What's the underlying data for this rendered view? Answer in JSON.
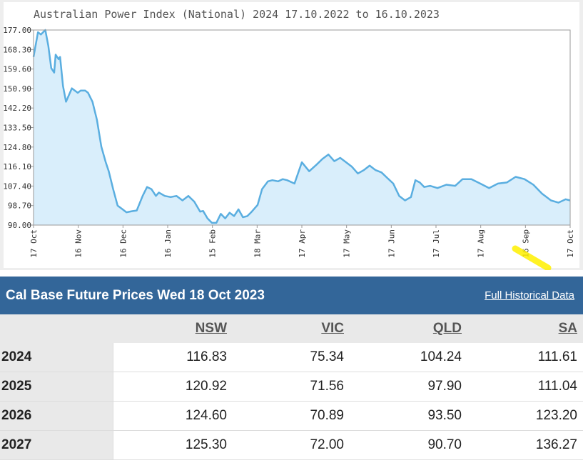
{
  "chart_data": {
    "type": "area",
    "title": "Australian Power Index (National) 2024 17.10.2022 to 16.10.2023",
    "ylim": [
      90.0,
      177.0
    ],
    "y_ticks": [
      "177.00",
      "168.30",
      "159.60",
      "150.90",
      "142.20",
      "133.50",
      "124.80",
      "116.10",
      "107.40",
      "98.70",
      "90.00"
    ],
    "x_ticks": [
      "17 Oct",
      "16 Nov",
      "16 Dec",
      "16 Jan",
      "15 Feb",
      "18 Mar",
      "17 Apr",
      "17 May",
      "17 Jun",
      "17 Jul",
      "17 Aug",
      "16 Sep",
      "17 Oct"
    ],
    "grid": false,
    "series": [
      {
        "x": [
          "2022-10-17",
          "2022-10-20",
          "2022-10-22",
          "2022-10-25",
          "2022-10-27",
          "2022-10-29",
          "2022-10-31",
          "2022-11-01",
          "2022-11-03",
          "2022-11-04",
          "2022-11-06",
          "2022-11-08",
          "2022-11-10",
          "2022-11-12",
          "2022-11-14",
          "2022-11-16",
          "2022-11-18",
          "2022-11-21",
          "2022-11-23",
          "2022-11-26",
          "2022-11-29",
          "2022-12-02",
          "2022-12-05",
          "2022-12-07",
          "2022-12-10",
          "2022-12-13",
          "2022-12-16",
          "2022-12-19",
          "2022-12-23",
          "2022-12-26",
          "2022-12-30",
          "2023-01-02",
          "2023-01-05",
          "2023-01-08",
          "2023-01-10",
          "2023-01-14",
          "2023-01-18",
          "2023-01-22",
          "2023-01-26",
          "2023-01-30",
          "2023-02-03",
          "2023-02-07",
          "2023-02-09",
          "2023-02-12",
          "2023-02-15",
          "2023-02-18",
          "2023-02-21",
          "2023-02-24",
          "2023-02-27",
          "2023-03-02",
          "2023-03-05",
          "2023-03-08",
          "2023-03-11",
          "2023-03-14",
          "2023-03-18",
          "2023-03-21",
          "2023-03-25",
          "2023-03-28",
          "2023-04-01",
          "2023-04-04",
          "2023-04-07",
          "2023-04-12",
          "2023-04-17",
          "2023-04-22",
          "2023-04-27",
          "2023-05-01",
          "2023-05-05",
          "2023-05-09",
          "2023-05-13",
          "2023-05-17",
          "2023-05-21",
          "2023-05-25",
          "2023-05-29",
          "2023-06-02",
          "2023-06-06",
          "2023-06-10",
          "2023-06-14",
          "2023-06-18",
          "2023-06-22",
          "2023-06-26",
          "2023-06-30",
          "2023-07-03",
          "2023-07-06",
          "2023-07-09",
          "2023-07-13",
          "2023-07-18",
          "2023-07-24",
          "2023-07-30",
          "2023-08-04",
          "2023-08-10",
          "2023-08-16",
          "2023-08-22",
          "2023-08-28",
          "2023-09-03",
          "2023-09-09",
          "2023-09-15",
          "2023-09-21",
          "2023-09-27",
          "2023-10-03",
          "2023-10-08",
          "2023-10-13",
          "2023-10-16"
        ],
        "y": [
          165.0,
          176.0,
          175.0,
          177.0,
          170.0,
          160.0,
          158.0,
          166.0,
          164.0,
          165.0,
          152.0,
          145.0,
          148.0,
          151.0,
          150.0,
          149.0,
          150.0,
          150.0,
          149.0,
          145.0,
          137.0,
          125.0,
          118.0,
          114.0,
          106.0,
          98.7,
          97.2,
          95.7,
          96.2,
          96.5,
          103.0,
          107.0,
          106.0,
          103.0,
          104.5,
          103.0,
          102.5,
          103.0,
          101.0,
          103.0,
          100.5,
          96.0,
          96.3,
          93.0,
          91.0,
          91.0,
          95.0,
          93.0,
          95.5,
          94.0,
          97.0,
          93.5,
          94.0,
          96.0,
          99.0,
          106.0,
          109.5,
          110.0,
          109.5,
          110.5,
          110.0,
          108.5,
          118.0,
          114.0,
          117.0,
          119.5,
          121.5,
          118.5,
          120.0,
          118.0,
          116.0,
          113.0,
          114.5,
          116.5,
          114.5,
          113.5,
          111.0,
          108.5,
          103.0,
          101.0,
          102.5,
          110.0,
          109.0,
          107.0,
          107.5,
          106.5,
          108.0,
          107.5,
          110.5,
          110.5,
          108.5,
          106.5,
          108.5,
          109.0,
          111.5,
          110.5,
          108.0,
          104.0,
          101.0,
          100.0,
          101.5,
          101.0
        ]
      }
    ]
  },
  "table": {
    "title": "Cal Base Future Prices Wed 18 Oct 2023",
    "link": "Full Historical Data",
    "headers": [
      "NSW",
      "VIC",
      "QLD",
      "SA"
    ],
    "rows": [
      {
        "year": "2024",
        "values": [
          "116.83",
          "75.34",
          "104.24",
          "111.61"
        ]
      },
      {
        "year": "2025",
        "values": [
          "120.92",
          "71.56",
          "97.90",
          "111.04"
        ]
      },
      {
        "year": "2026",
        "values": [
          "124.60",
          "70.89",
          "93.50",
          "123.20"
        ]
      },
      {
        "year": "2027",
        "values": [
          "125.30",
          "72.00",
          "90.70",
          "136.27"
        ]
      }
    ]
  },
  "colors": {
    "line": "#5aaee0",
    "fill": "#d9eefb",
    "header_bg": "#336699",
    "highlight": "#fff000"
  }
}
